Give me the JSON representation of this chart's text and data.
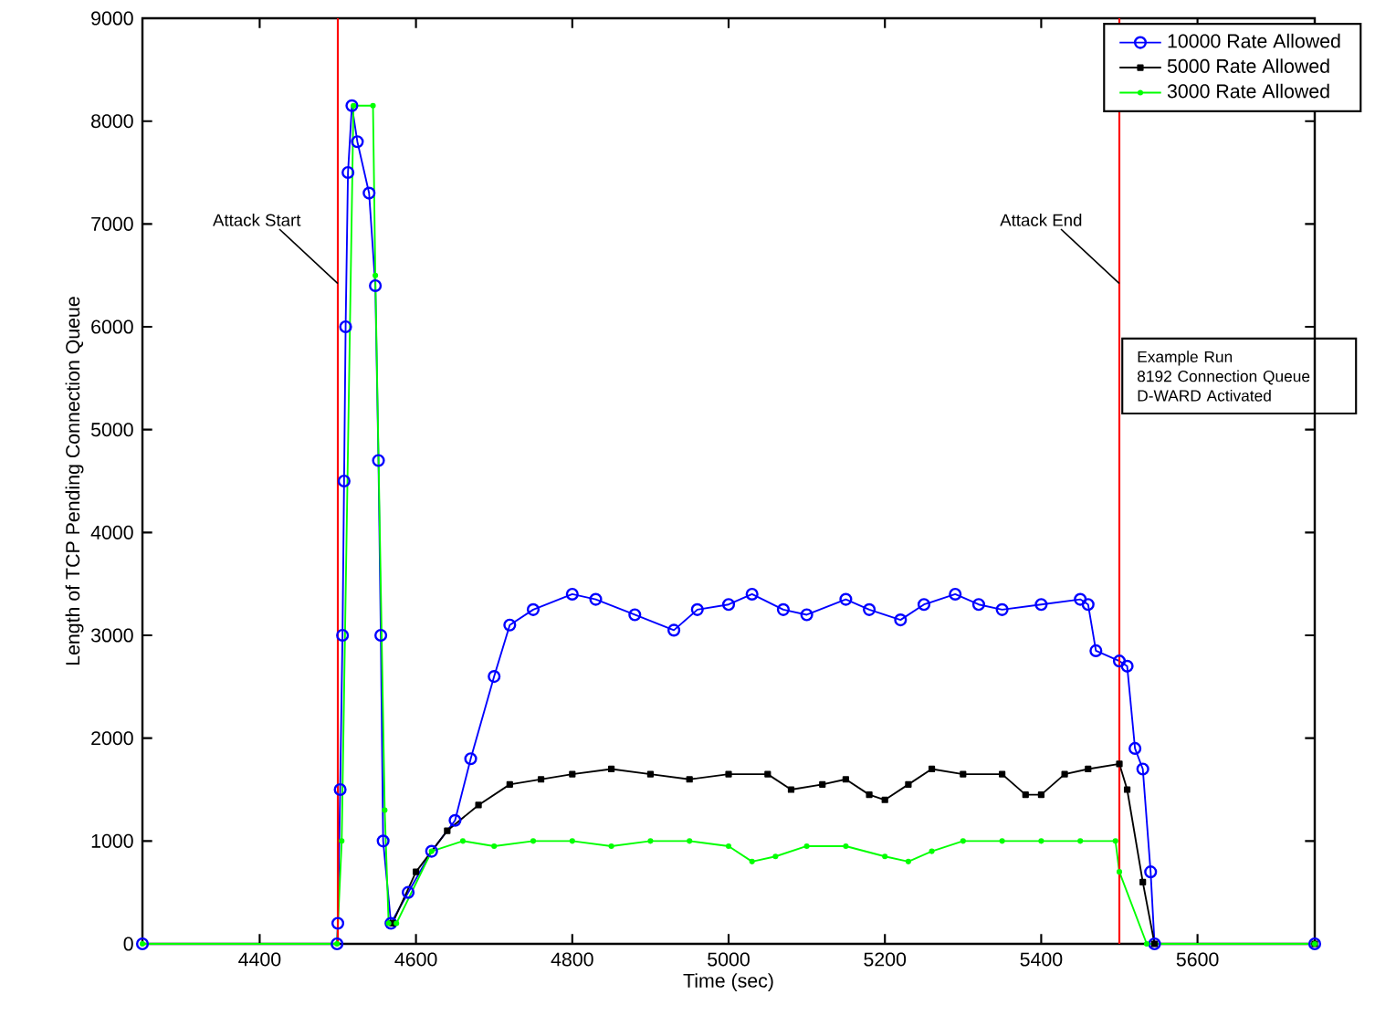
{
  "chart_data": {
    "type": "line",
    "xlabel": "Time (sec)",
    "ylabel": "Length of TCP Pending Connection Queue",
    "xlim": [
      4250,
      5750
    ],
    "ylim": [
      0,
      9000
    ],
    "xticks": [
      4400,
      4600,
      4800,
      5000,
      5200,
      5400,
      5600
    ],
    "yticks": [
      0,
      1000,
      2000,
      3000,
      4000,
      5000,
      6000,
      7000,
      8000,
      9000
    ],
    "grid": false,
    "legend": "top right",
    "line_style": "solid",
    "series": [
      {
        "name": "10000 Rate Allowed",
        "color": "#0000ff",
        "marker": "circle",
        "x": [
          4250,
          4499,
          4500,
          4503,
          4506,
          4508,
          4510,
          4513,
          4518,
          4525,
          4540,
          4548,
          4552,
          4555,
          4558,
          4568,
          4590,
          4620,
          4650,
          4670,
          4700,
          4720,
          4750,
          4800,
          4830,
          4880,
          4930,
          4960,
          5000,
          5030,
          5070,
          5100,
          5150,
          5180,
          5220,
          5250,
          5290,
          5320,
          5350,
          5400,
          5450,
          5460,
          5470,
          5500,
          5510,
          5520,
          5530,
          5540,
          5545,
          5750
        ],
        "values": [
          0,
          0,
          200,
          1500,
          3000,
          4500,
          6000,
          7500,
          8150,
          7800,
          7300,
          6400,
          4700,
          3000,
          1000,
          200,
          500,
          900,
          1200,
          1800,
          2600,
          3100,
          3250,
          3400,
          3350,
          3200,
          3050,
          3250,
          3300,
          3400,
          3250,
          3200,
          3350,
          3250,
          3150,
          3300,
          3400,
          3300,
          3250,
          3300,
          3350,
          3300,
          2850,
          2750,
          2700,
          1900,
          1700,
          700,
          0,
          0
        ]
      },
      {
        "name": "5000 Rate Allowed",
        "color": "#000000",
        "marker": "square",
        "x": [
          4570,
          4600,
          4640,
          4680,
          4720,
          4760,
          4800,
          4850,
          4900,
          4950,
          5000,
          5050,
          5080,
          5120,
          5150,
          5180,
          5200,
          5230,
          5260,
          5300,
          5350,
          5380,
          5400,
          5430,
          5460,
          5500,
          5510,
          5530,
          5545,
          5750
        ],
        "values": [
          200,
          700,
          1100,
          1350,
          1550,
          1600,
          1650,
          1700,
          1650,
          1600,
          1650,
          1650,
          1500,
          1550,
          1600,
          1450,
          1400,
          1550,
          1700,
          1650,
          1650,
          1450,
          1450,
          1650,
          1700,
          1750,
          1500,
          600,
          0,
          0
        ]
      },
      {
        "name": "3000 Rate Allowed",
        "color": "#00ff00",
        "marker": "circle",
        "x": [
          4250,
          4499,
          4505,
          4520,
          4545,
          4548,
          4560,
          4565,
          4575,
          4620,
          4660,
          4700,
          4750,
          4800,
          4850,
          4900,
          4950,
          5000,
          5030,
          5060,
          5100,
          5150,
          5200,
          5230,
          5260,
          5300,
          5350,
          5400,
          5450,
          5495,
          5500,
          5535,
          5750
        ],
        "values": [
          0,
          0,
          1000,
          8150,
          8150,
          6500,
          1300,
          200,
          200,
          900,
          1000,
          950,
          1000,
          1000,
          950,
          1000,
          1000,
          950,
          800,
          850,
          950,
          950,
          850,
          800,
          900,
          1000,
          1000,
          1000,
          1000,
          1000,
          700,
          0,
          0
        ]
      }
    ],
    "ref_lines": [
      {
        "axis": "x",
        "value": 4500,
        "label": "Attack Start",
        "color": "#ff0000"
      },
      {
        "axis": "x",
        "value": 5500,
        "label": "Attack End",
        "color": "#ff0000"
      }
    ],
    "annotations": [
      "Example Run",
      "8192 Connection Queue",
      "D-WARD Activated"
    ]
  }
}
